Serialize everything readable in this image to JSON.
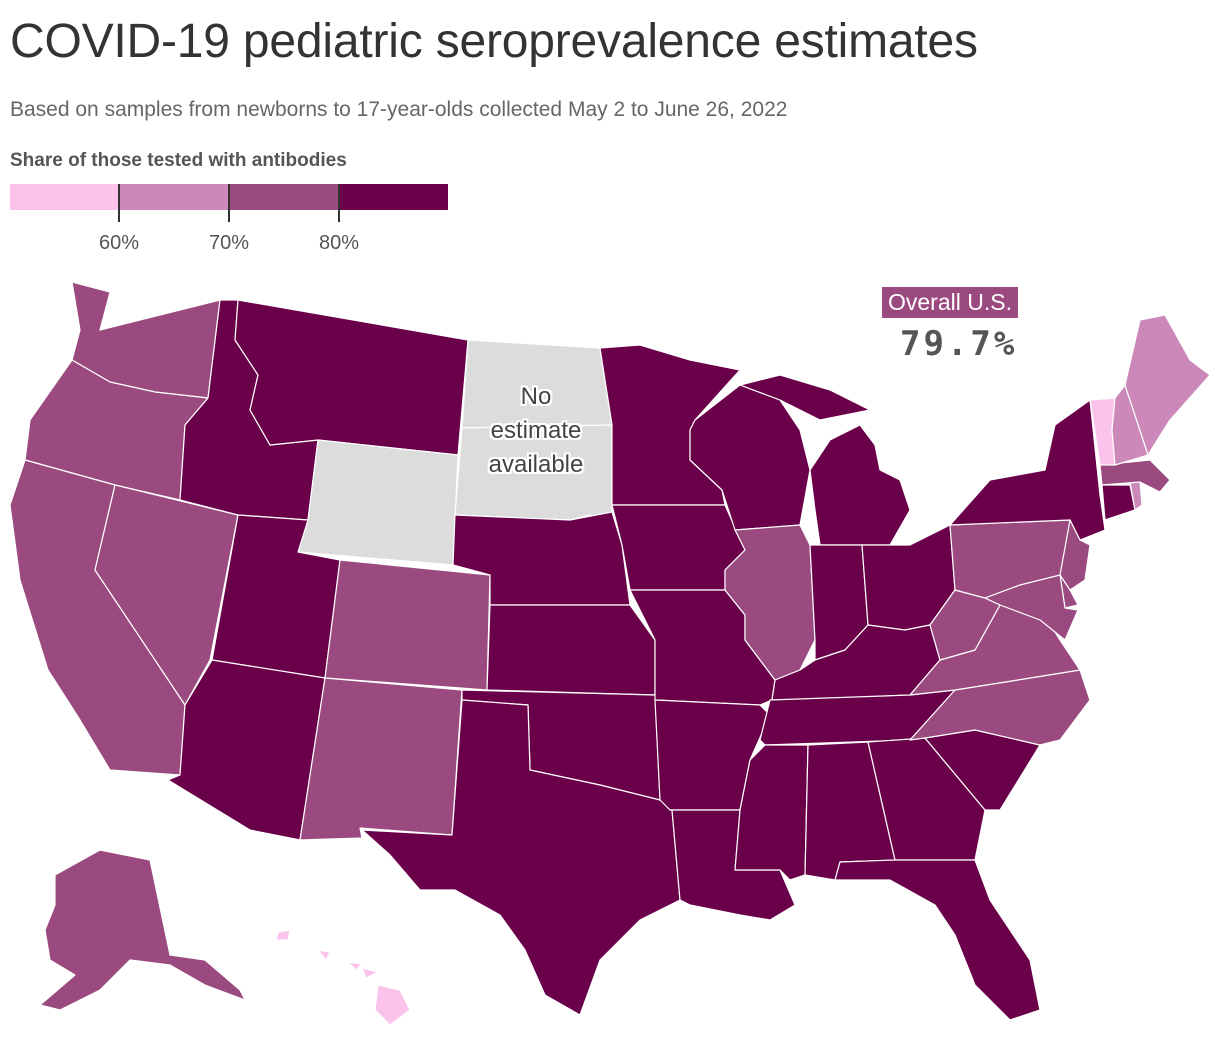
{
  "title": "COVID-19 pediatric seroprevalence estimates",
  "subtitle": "Based on samples from newborns to 17-year-olds collected May 2 to June 26, 2022",
  "legend": {
    "title": "Share of those tested with antibodies",
    "colors": [
      "#fbc2ec",
      "#cd88ba",
      "#9b4a7f",
      "#6b004a"
    ],
    "tick_labels": [
      "60%",
      "70%",
      "80%"
    ]
  },
  "overall": {
    "label": "Overall U.S.",
    "value": "79.7%"
  },
  "no_estimate": {
    "lines": [
      "No",
      "estimate",
      "available"
    ],
    "color": "#dcdcdc"
  },
  "map_data": {
    "bins": [
      "<60%",
      "60-70%",
      "70-80%",
      ">=80%"
    ],
    "states": [
      {
        "state": "WA",
        "bin": 2
      },
      {
        "state": "OR",
        "bin": 2
      },
      {
        "state": "CA",
        "bin": 2
      },
      {
        "state": "NV",
        "bin": 2
      },
      {
        "state": "ID",
        "bin": 3
      },
      {
        "state": "MT",
        "bin": 3
      },
      {
        "state": "WY",
        "bin": null
      },
      {
        "state": "UT",
        "bin": 3
      },
      {
        "state": "AZ",
        "bin": 3
      },
      {
        "state": "CO",
        "bin": 2
      },
      {
        "state": "NM",
        "bin": 2
      },
      {
        "state": "ND",
        "bin": null
      },
      {
        "state": "SD",
        "bin": null
      },
      {
        "state": "NE",
        "bin": 3
      },
      {
        "state": "KS",
        "bin": 3
      },
      {
        "state": "OK",
        "bin": 3
      },
      {
        "state": "TX",
        "bin": 3
      },
      {
        "state": "MN",
        "bin": 3
      },
      {
        "state": "IA",
        "bin": 3
      },
      {
        "state": "MO",
        "bin": 3
      },
      {
        "state": "AR",
        "bin": 3
      },
      {
        "state": "LA",
        "bin": 3
      },
      {
        "state": "WI",
        "bin": 3
      },
      {
        "state": "IL",
        "bin": 2
      },
      {
        "state": "MI",
        "bin": 3
      },
      {
        "state": "IN",
        "bin": 3
      },
      {
        "state": "OH",
        "bin": 3
      },
      {
        "state": "KY",
        "bin": 3
      },
      {
        "state": "TN",
        "bin": 3
      },
      {
        "state": "MS",
        "bin": 3
      },
      {
        "state": "AL",
        "bin": 3
      },
      {
        "state": "GA",
        "bin": 3
      },
      {
        "state": "FL",
        "bin": 3
      },
      {
        "state": "SC",
        "bin": 3
      },
      {
        "state": "NC",
        "bin": 2
      },
      {
        "state": "VA",
        "bin": 2
      },
      {
        "state": "WV",
        "bin": 2
      },
      {
        "state": "PA",
        "bin": 2
      },
      {
        "state": "NY",
        "bin": 3
      },
      {
        "state": "NJ",
        "bin": 2
      },
      {
        "state": "DE",
        "bin": 2
      },
      {
        "state": "MD",
        "bin": 2
      },
      {
        "state": "CT",
        "bin": 3
      },
      {
        "state": "RI",
        "bin": 1
      },
      {
        "state": "MA",
        "bin": 2
      },
      {
        "state": "VT",
        "bin": 0
      },
      {
        "state": "NH",
        "bin": 1
      },
      {
        "state": "ME",
        "bin": 1
      },
      {
        "state": "AK",
        "bin": 2
      },
      {
        "state": "HI",
        "bin": 0
      }
    ]
  }
}
